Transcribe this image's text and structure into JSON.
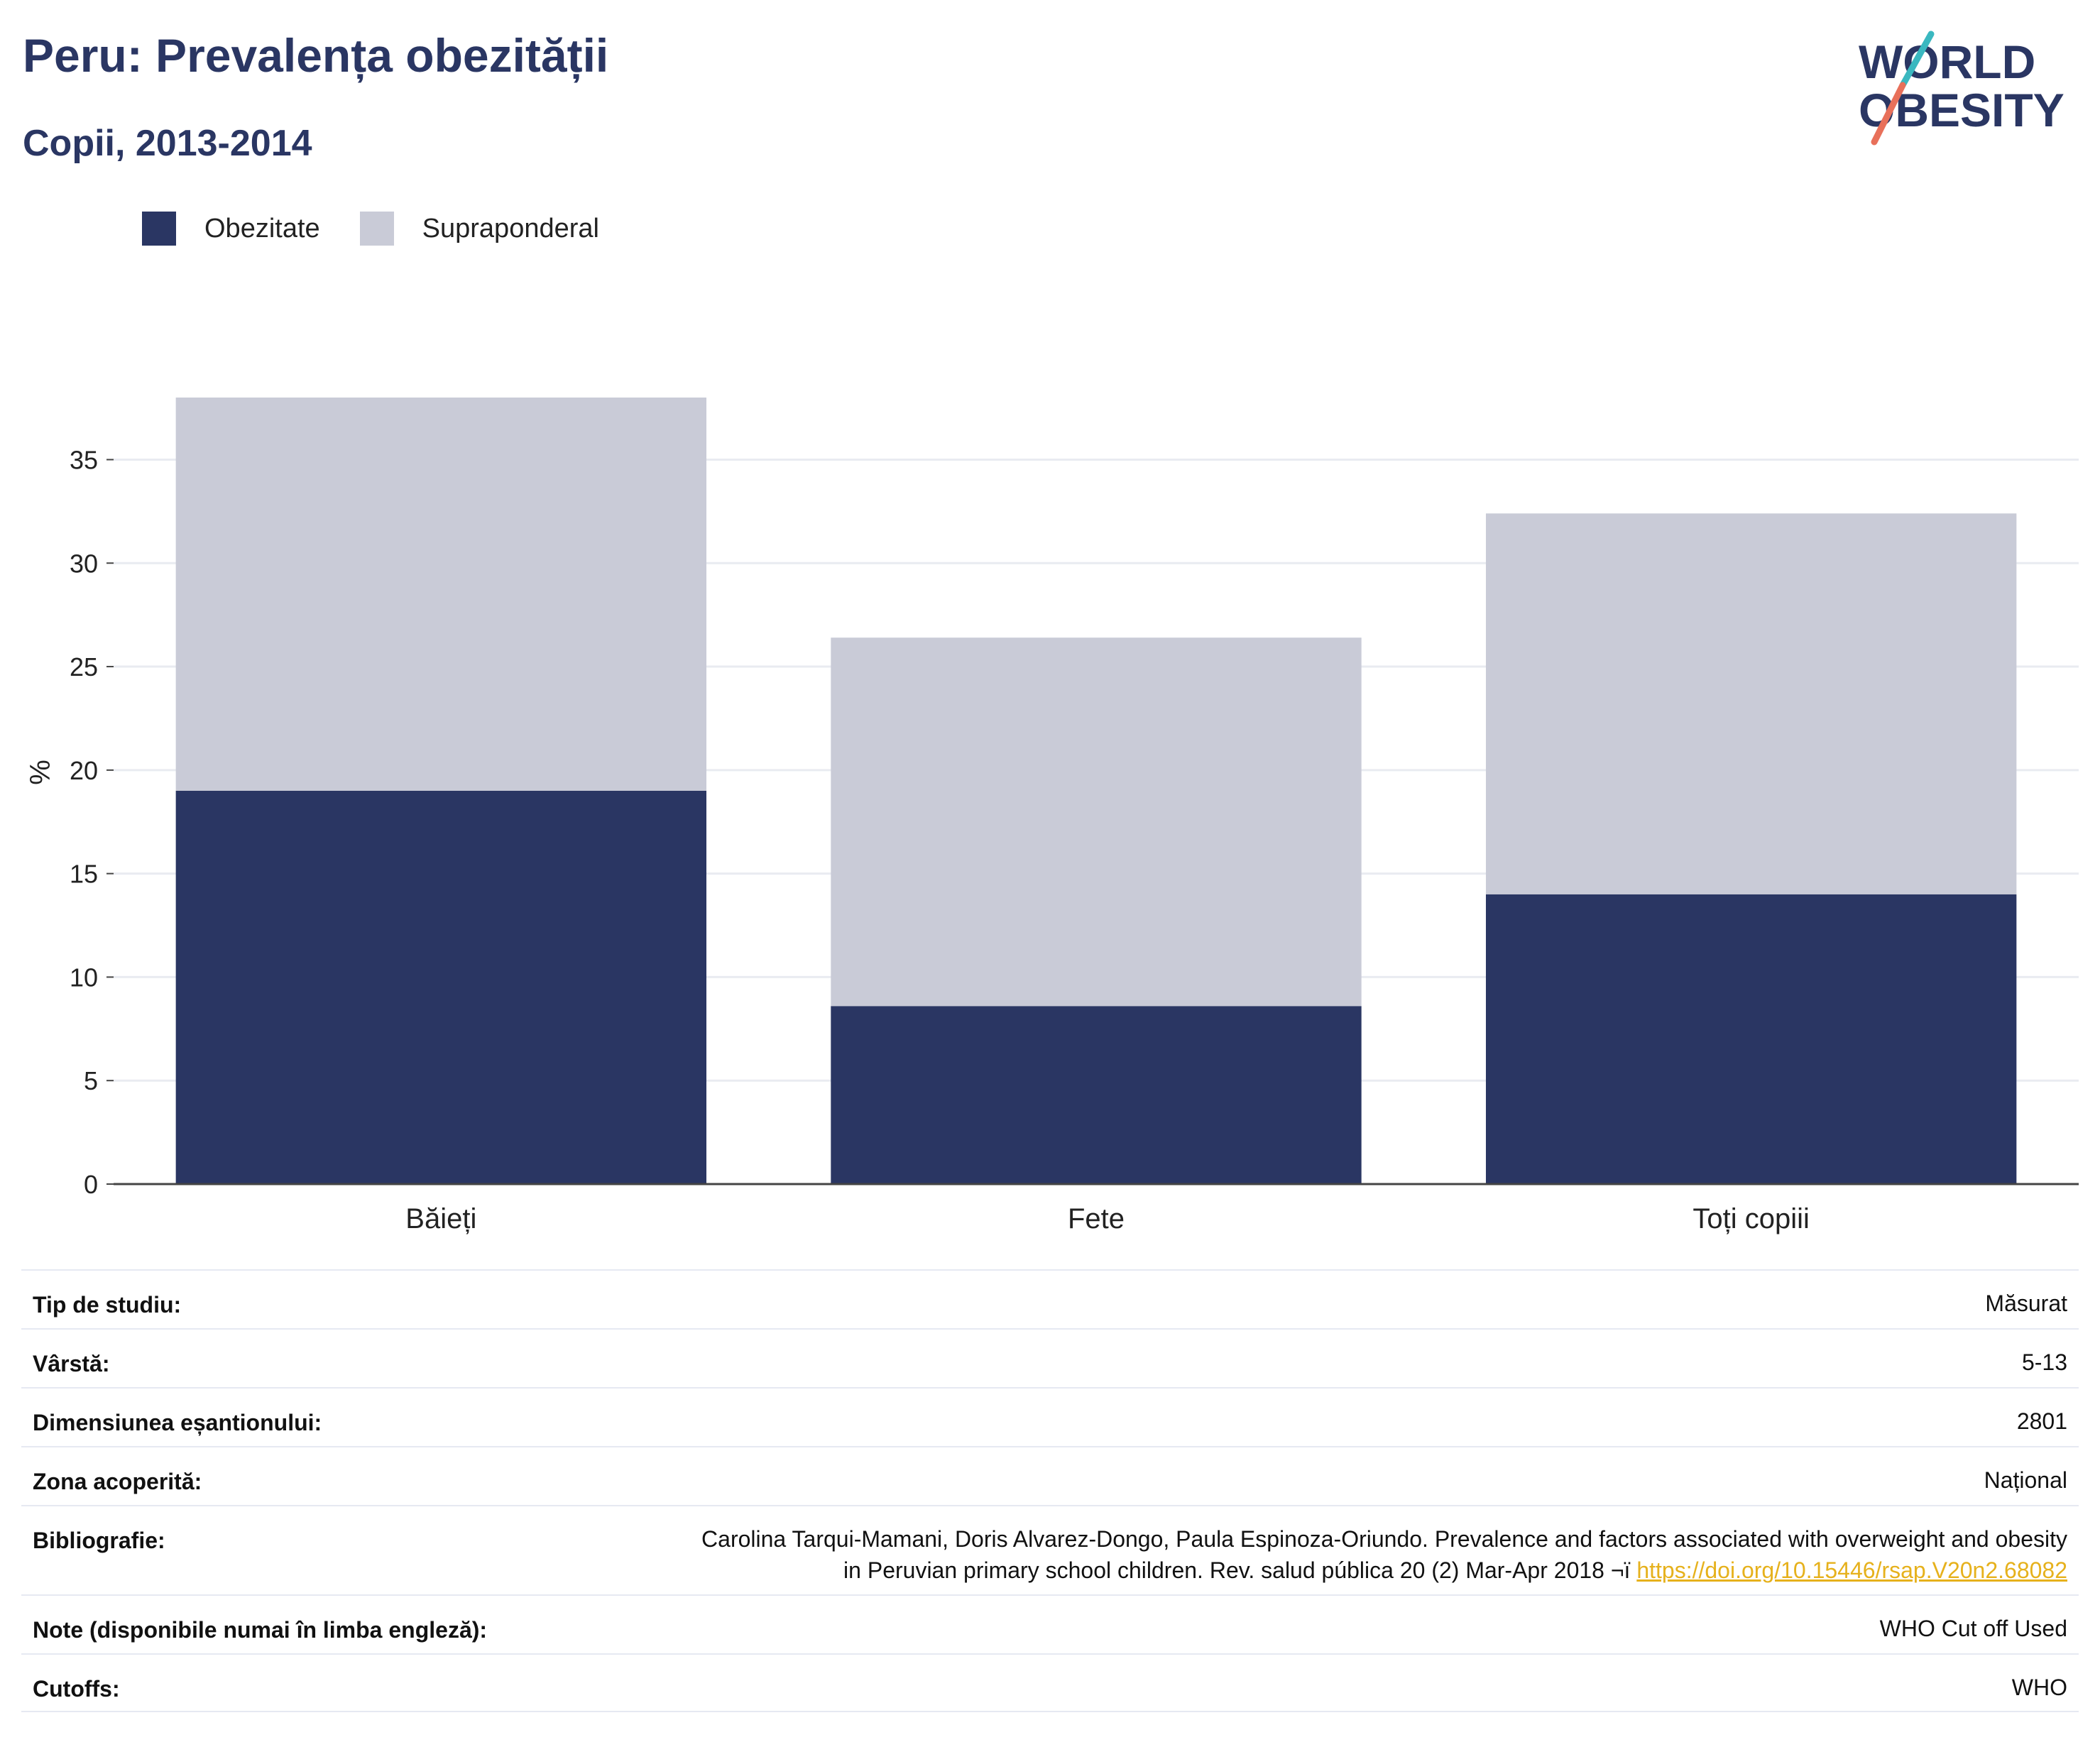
{
  "header": {
    "title": "Peru: Prevalența obezității",
    "subtitle": "Copii, 2013-2014"
  },
  "logo": {
    "line1": "WORLD",
    "line2": "OBESITY"
  },
  "legend": [
    {
      "label": "Obezitate",
      "color": "#2a3663"
    },
    {
      "label": "Supraponderal",
      "color": "#c9cbd7"
    }
  ],
  "chart_data": {
    "type": "bar",
    "stacked": true,
    "categories": [
      "Băieți",
      "Fete",
      "Toți copiii"
    ],
    "series": [
      {
        "name": "Obezitate",
        "values": [
          19.0,
          8.6,
          14.0
        ],
        "color": "#2a3663"
      },
      {
        "name": "Supraponderal",
        "values": [
          19.0,
          17.8,
          18.4
        ],
        "color": "#c9cbd7"
      }
    ],
    "ylabel": "%",
    "ylim": [
      0,
      38
    ],
    "yticks": [
      0,
      5,
      10,
      15,
      20,
      25,
      30,
      35
    ],
    "grid": true,
    "legend_position": "top-left"
  },
  "meta": {
    "study_type": {
      "label": "Tip de studiu:",
      "value": "Măsurat"
    },
    "age": {
      "label": "Vârstă:",
      "value": "5-13"
    },
    "sample": {
      "label": "Dimensiunea eșantionului:",
      "value": "2801"
    },
    "area": {
      "label": "Zona acoperită:",
      "value": "Național"
    },
    "bibliography": {
      "label": "Bibliografie:",
      "line1": "Carolina Tarqui-Mamani, Doris Alvarez-Dongo, Paula Espinoza-Oriundo. Prevalence and factors associated with overweight and obesity",
      "line2": "in Peruvian primary school children. Rev. salud pública 20 (2) Mar-Apr 2018 ¬ï",
      "link": "https://doi.org/10.15446/rsap.V20n2.68082"
    },
    "notes": {
      "label": "Note (disponibile numai în limba engleză):",
      "value": "WHO Cut off Used"
    },
    "cutoffs": {
      "label": "Cutoffs:",
      "value": "WHO"
    }
  }
}
